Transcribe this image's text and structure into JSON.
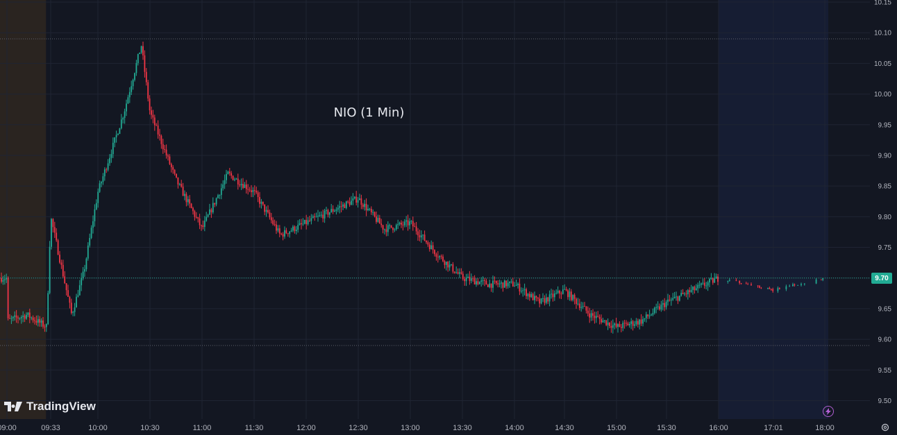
{
  "chart_data": {
    "type": "candlestick",
    "title": "NIO (1 Min)",
    "ylim": [
      9.47,
      10.15
    ],
    "y_ticks": [
      "10.15",
      "10.10",
      "10.05",
      "10.00",
      "9.95",
      "9.90",
      "9.85",
      "9.80",
      "9.75",
      "9.70",
      "9.65",
      "9.60",
      "9.55",
      "9.50"
    ],
    "x_ticks": [
      "09:00",
      "09:33",
      "10:00",
      "10:30",
      "11:00",
      "11:30",
      "12:00",
      "12:30",
      "13:00",
      "13:30",
      "14:00",
      "14:30",
      "15:00",
      "15:30",
      "16:00",
      "17:01",
      "18:00"
    ],
    "last_price": "9.70",
    "reference_lines": [
      10.09,
      9.59
    ],
    "price_path": [
      {
        "t": "09:00",
        "p": 9.63
      },
      {
        "t": "09:15",
        "p": 9.64
      },
      {
        "t": "09:30",
        "p": 9.62
      },
      {
        "t": "09:33",
        "p": 9.8
      },
      {
        "t": "09:45",
        "p": 9.64
      },
      {
        "t": "09:52",
        "p": 9.71
      },
      {
        "t": "10:00",
        "p": 9.84
      },
      {
        "t": "10:15",
        "p": 9.97
      },
      {
        "t": "10:25",
        "p": 10.08
      },
      {
        "t": "10:30",
        "p": 9.97
      },
      {
        "t": "10:45",
        "p": 9.86
      },
      {
        "t": "11:00",
        "p": 9.78
      },
      {
        "t": "11:15",
        "p": 9.87
      },
      {
        "t": "11:30",
        "p": 9.84
      },
      {
        "t": "11:45",
        "p": 9.77
      },
      {
        "t": "12:00",
        "p": 9.79
      },
      {
        "t": "12:15",
        "p": 9.81
      },
      {
        "t": "12:30",
        "p": 9.83
      },
      {
        "t": "12:45",
        "p": 9.78
      },
      {
        "t": "13:00",
        "p": 9.79
      },
      {
        "t": "13:15",
        "p": 9.74
      },
      {
        "t": "13:30",
        "p": 9.7
      },
      {
        "t": "13:45",
        "p": 9.69
      },
      {
        "t": "14:00",
        "p": 9.69
      },
      {
        "t": "14:15",
        "p": 9.66
      },
      {
        "t": "14:30",
        "p": 9.68
      },
      {
        "t": "14:45",
        "p": 9.64
      },
      {
        "t": "15:00",
        "p": 9.62
      },
      {
        "t": "15:15",
        "p": 9.63
      },
      {
        "t": "15:30",
        "p": 9.66
      },
      {
        "t": "15:45",
        "p": 9.68
      },
      {
        "t": "16:00",
        "p": 9.7
      },
      {
        "t": "16:30",
        "p": 9.69
      },
      {
        "t": "17:01",
        "p": 9.68
      },
      {
        "t": "17:30",
        "p": 9.69
      },
      {
        "t": "18:00",
        "p": 9.7
      }
    ],
    "colors": {
      "up": "#22ab94",
      "down": "#f23645",
      "background": "#131722",
      "premarket": "#2a2420",
      "postmarket": "#161d33",
      "grid": "#1f2433",
      "axis_text": "#b2b5be"
    }
  },
  "branding": {
    "logo_text": "TradingView"
  },
  "icons": {
    "lightning": "lightning-icon",
    "settings": "gear-icon"
  }
}
